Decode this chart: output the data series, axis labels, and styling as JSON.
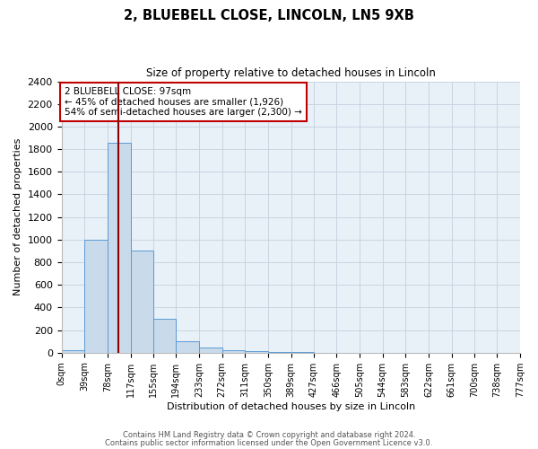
{
  "title": "2, BLUEBELL CLOSE, LINCOLN, LN5 9XB",
  "subtitle": "Size of property relative to detached houses in Lincoln",
  "xlabel": "Distribution of detached houses by size in Lincoln",
  "ylabel": "Number of detached properties",
  "bin_edges": [
    0,
    39,
    78,
    117,
    155,
    194,
    233,
    272,
    311,
    350,
    389,
    427,
    466,
    505,
    544,
    583,
    622,
    661,
    700,
    738,
    777
  ],
  "bin_counts": [
    20,
    1000,
    1860,
    900,
    300,
    100,
    45,
    20,
    10,
    5,
    3,
    0,
    0,
    0,
    0,
    0,
    0,
    0,
    0,
    0
  ],
  "tick_labels": [
    "0sqm",
    "39sqm",
    "78sqm",
    "117sqm",
    "155sqm",
    "194sqm",
    "233sqm",
    "272sqm",
    "311sqm",
    "350sqm",
    "389sqm",
    "427sqm",
    "466sqm",
    "505sqm",
    "544sqm",
    "583sqm",
    "622sqm",
    "661sqm",
    "700sqm",
    "738sqm",
    "777sqm"
  ],
  "bar_facecolor": "#c9daea",
  "bar_edgecolor": "#5b9bd5",
  "vline_x": 97,
  "vline_color": "#8b0000",
  "ylim": [
    0,
    2400
  ],
  "yticks": [
    0,
    200,
    400,
    600,
    800,
    1000,
    1200,
    1400,
    1600,
    1800,
    2000,
    2200,
    2400
  ],
  "annotation_title": "2 BLUEBELL CLOSE: 97sqm",
  "annotation_line1": "← 45% of detached houses are smaller (1,926)",
  "annotation_line2": "54% of semi-detached houses are larger (2,300) →",
  "annotation_box_facecolor": "#ffffff",
  "annotation_box_edgecolor": "#c00000",
  "plot_bg_color": "#e8f0f8",
  "footer1": "Contains HM Land Registry data © Crown copyright and database right 2024.",
  "footer2": "Contains public sector information licensed under the Open Government Licence v3.0."
}
